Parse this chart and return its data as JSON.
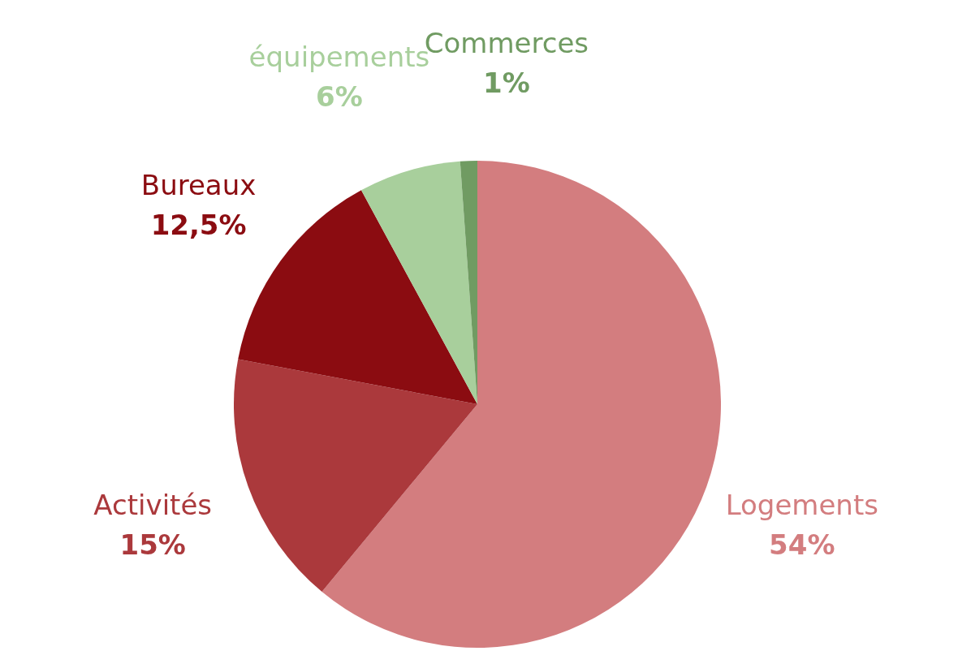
{
  "chart_data": {
    "type": "pie",
    "categories": [
      "Logements",
      "Activités",
      "Bureaux",
      "équipements",
      "Commerces"
    ],
    "values": [
      54,
      15,
      12.5,
      6,
      1
    ],
    "value_labels": [
      "54%",
      "15%",
      "12,5%",
      "6%",
      "1%"
    ],
    "colors": [
      "#d37d7f",
      "#ab393c",
      "#8b0c11",
      "#a8cf9c",
      "#709b62"
    ],
    "legend": false
  }
}
